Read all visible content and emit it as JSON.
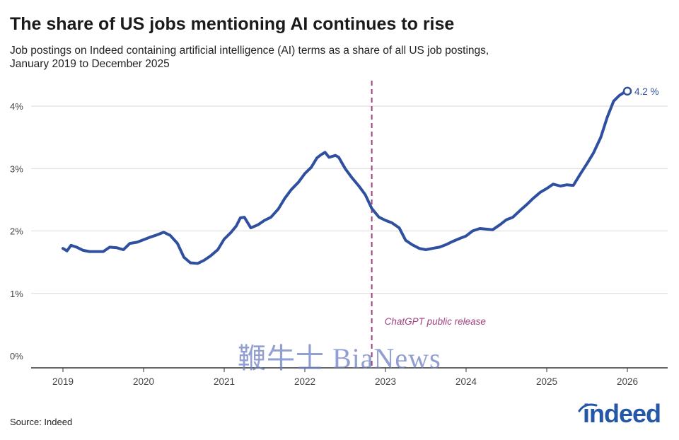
{
  "chart_data": {
    "type": "line",
    "title": "The share of US jobs mentioning AI continues to rise",
    "subtitle": "Job postings on Indeed containing artificial intelligence (AI) terms as a share of all US job postings, January 2019 to December 2025",
    "xlabel": "",
    "ylabel": "",
    "x_ticks": [
      "2019",
      "2020",
      "2021",
      "2022",
      "2023",
      "2024",
      "2025",
      "2026"
    ],
    "y_ticks": [
      "0%",
      "1%",
      "2%",
      "3%",
      "4%"
    ],
    "xlim": [
      2019,
      2026
    ],
    "ylim": [
      0,
      4.4
    ],
    "grid": "horizontal",
    "series": [
      {
        "color": "#2f4f9f",
        "points": [
          [
            2019.0,
            1.72
          ],
          [
            2019.05,
            1.68
          ],
          [
            2019.1,
            1.77
          ],
          [
            2019.17,
            1.74
          ],
          [
            2019.25,
            1.69
          ],
          [
            2019.33,
            1.67
          ],
          [
            2019.42,
            1.67
          ],
          [
            2019.5,
            1.67
          ],
          [
            2019.58,
            1.74
          ],
          [
            2019.67,
            1.73
          ],
          [
            2019.75,
            1.7
          ],
          [
            2019.83,
            1.8
          ],
          [
            2019.92,
            1.82
          ],
          [
            2020.0,
            1.86
          ],
          [
            2020.08,
            1.9
          ],
          [
            2020.15,
            1.93
          ],
          [
            2020.25,
            1.98
          ],
          [
            2020.33,
            1.93
          ],
          [
            2020.42,
            1.8
          ],
          [
            2020.5,
            1.58
          ],
          [
            2020.58,
            1.49
          ],
          [
            2020.67,
            1.48
          ],
          [
            2020.75,
            1.53
          ],
          [
            2020.83,
            1.6
          ],
          [
            2020.92,
            1.7
          ],
          [
            2021.0,
            1.87
          ],
          [
            2021.08,
            1.97
          ],
          [
            2021.15,
            2.08
          ],
          [
            2021.2,
            2.21
          ],
          [
            2021.25,
            2.22
          ],
          [
            2021.33,
            2.05
          ],
          [
            2021.42,
            2.1
          ],
          [
            2021.5,
            2.17
          ],
          [
            2021.58,
            2.22
          ],
          [
            2021.67,
            2.35
          ],
          [
            2021.75,
            2.52
          ],
          [
            2021.83,
            2.66
          ],
          [
            2021.92,
            2.78
          ],
          [
            2022.0,
            2.92
          ],
          [
            2022.08,
            3.02
          ],
          [
            2022.15,
            3.17
          ],
          [
            2022.2,
            3.22
          ],
          [
            2022.25,
            3.26
          ],
          [
            2022.3,
            3.18
          ],
          [
            2022.38,
            3.21
          ],
          [
            2022.42,
            3.18
          ],
          [
            2022.5,
            3.0
          ],
          [
            2022.58,
            2.86
          ],
          [
            2022.67,
            2.72
          ],
          [
            2022.75,
            2.58
          ],
          [
            2022.83,
            2.36
          ],
          [
            2022.92,
            2.22
          ],
          [
            2023.0,
            2.17
          ],
          [
            2023.08,
            2.13
          ],
          [
            2023.17,
            2.05
          ],
          [
            2023.25,
            1.85
          ],
          [
            2023.33,
            1.78
          ],
          [
            2023.42,
            1.72
          ],
          [
            2023.5,
            1.7
          ],
          [
            2023.58,
            1.72
          ],
          [
            2023.67,
            1.74
          ],
          [
            2023.75,
            1.78
          ],
          [
            2023.83,
            1.83
          ],
          [
            2023.92,
            1.88
          ],
          [
            2024.0,
            1.92
          ],
          [
            2024.08,
            2.0
          ],
          [
            2024.17,
            2.04
          ],
          [
            2024.25,
            2.03
          ],
          [
            2024.33,
            2.02
          ],
          [
            2024.42,
            2.1
          ],
          [
            2024.5,
            2.18
          ],
          [
            2024.58,
            2.22
          ],
          [
            2024.67,
            2.33
          ],
          [
            2024.75,
            2.42
          ],
          [
            2024.83,
            2.52
          ],
          [
            2024.92,
            2.62
          ],
          [
            2025.0,
            2.68
          ],
          [
            2025.08,
            2.75
          ],
          [
            2025.17,
            2.72
          ],
          [
            2025.25,
            2.74
          ],
          [
            2025.33,
            2.73
          ],
          [
            2025.42,
            2.92
          ],
          [
            2025.5,
            3.08
          ],
          [
            2025.58,
            3.25
          ],
          [
            2025.67,
            3.5
          ],
          [
            2025.75,
            3.82
          ],
          [
            2025.83,
            4.08
          ],
          [
            2025.9,
            4.17
          ],
          [
            2025.96,
            4.22
          ],
          [
            2026.0,
            4.24
          ]
        ]
      }
    ],
    "end_label": "4.2 %",
    "annotation": {
      "text": "ChatGPT public release",
      "x": 2022.83,
      "color": "#a0417e"
    }
  },
  "source": "Source: Indeed",
  "logo_text": "indeed",
  "watermark": "鞭牛士 BiaNews",
  "colors": {
    "line": "#2f4f9f",
    "annotation": "#a0417e",
    "grid": "#d9d9d9",
    "axis": "#333333",
    "logo": "#2557a7"
  }
}
